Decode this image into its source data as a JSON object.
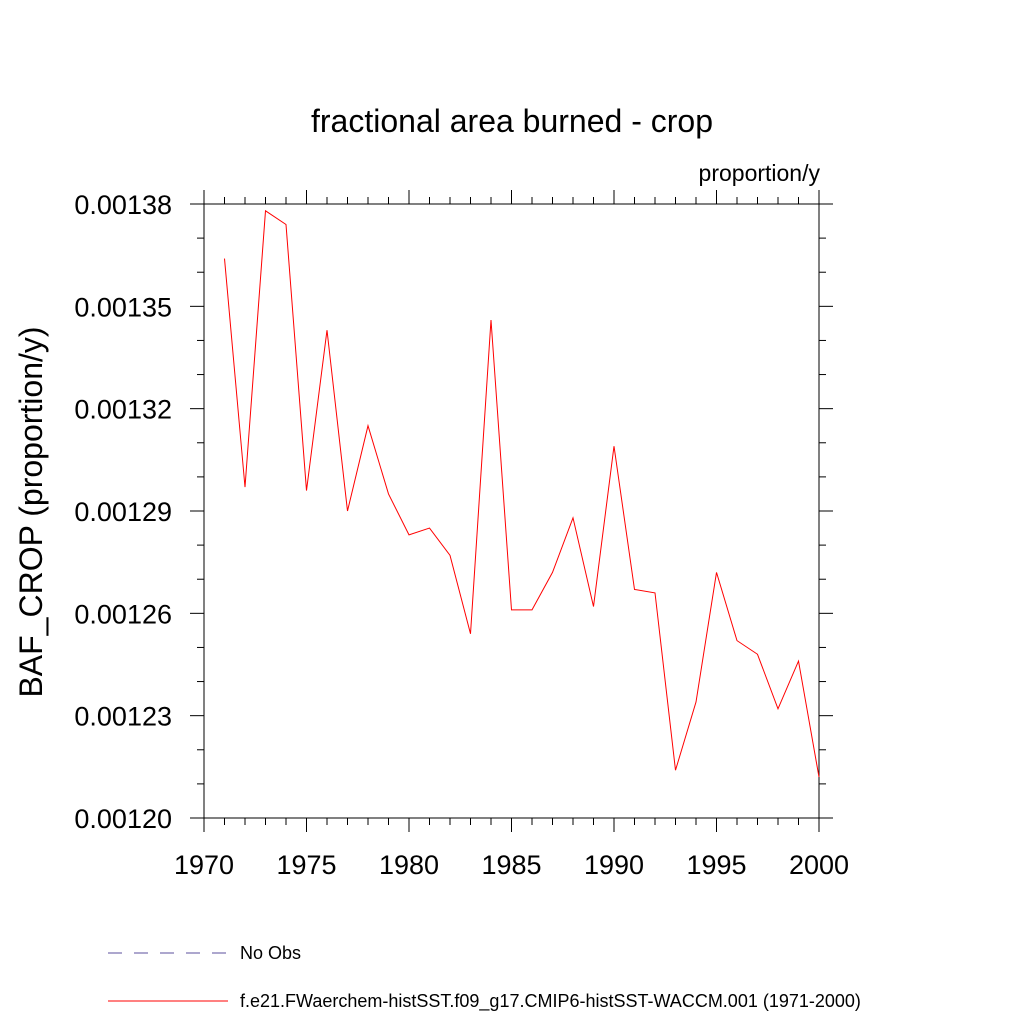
{
  "chart_data": {
    "type": "line",
    "title": "fractional area burned - crop",
    "units_label": "proportion/y",
    "ylabel": "BAF_CROP  (proportion/y)",
    "xlabel": "",
    "xlim": [
      1970,
      2000
    ],
    "ylim": [
      0.0012,
      0.00138
    ],
    "x_ticks": [
      1970,
      1975,
      1980,
      1985,
      1990,
      1995,
      2000
    ],
    "x_tick_labels": [
      "1970",
      "1975",
      "1980",
      "1985",
      "1990",
      "1995",
      "2000"
    ],
    "y_ticks": [
      0.0012,
      0.00123,
      0.00126,
      0.00129,
      0.00132,
      0.00135,
      0.00138
    ],
    "y_tick_labels": [
      "0.00120",
      "0.00123",
      "0.00126",
      "0.00129",
      "0.00132",
      "0.00135",
      "0.00138"
    ],
    "grid": false,
    "legend_position": "bottom",
    "series": [
      {
        "name": "f.e21.FWaerchem-histSST.f09_g17.CMIP6-histSST-WACCM.001 (1971-2000)",
        "color": "#ff0000",
        "style": "solid",
        "x": [
          1971,
          1972,
          1973,
          1974,
          1975,
          1976,
          1977,
          1978,
          1979,
          1980,
          1981,
          1982,
          1983,
          1984,
          1985,
          1986,
          1987,
          1988,
          1989,
          1990,
          1991,
          1992,
          1993,
          1994,
          1995,
          1996,
          1997,
          1998,
          1999,
          2000
        ],
        "y": [
          0.001364,
          0.001297,
          0.001378,
          0.001374,
          0.001296,
          0.001343,
          0.00129,
          0.001315,
          0.001295,
          0.001283,
          0.001285,
          0.001277,
          0.001254,
          0.001346,
          0.001261,
          0.001261,
          0.001272,
          0.001288,
          0.001262,
          0.001309,
          0.001267,
          0.001266,
          0.001214,
          0.001234,
          0.001272,
          0.001252,
          0.001248,
          0.001232,
          0.001246,
          0.001212
        ]
      }
    ],
    "legend": [
      {
        "label": "No Obs",
        "color": "#5b4f9e",
        "style": "dashed"
      },
      {
        "label": "f.e21.FWaerchem-histSST.f09_g17.CMIP6-histSST-WACCM.001 (1971-2000)",
        "color": "#ff0000",
        "style": "solid"
      }
    ]
  }
}
